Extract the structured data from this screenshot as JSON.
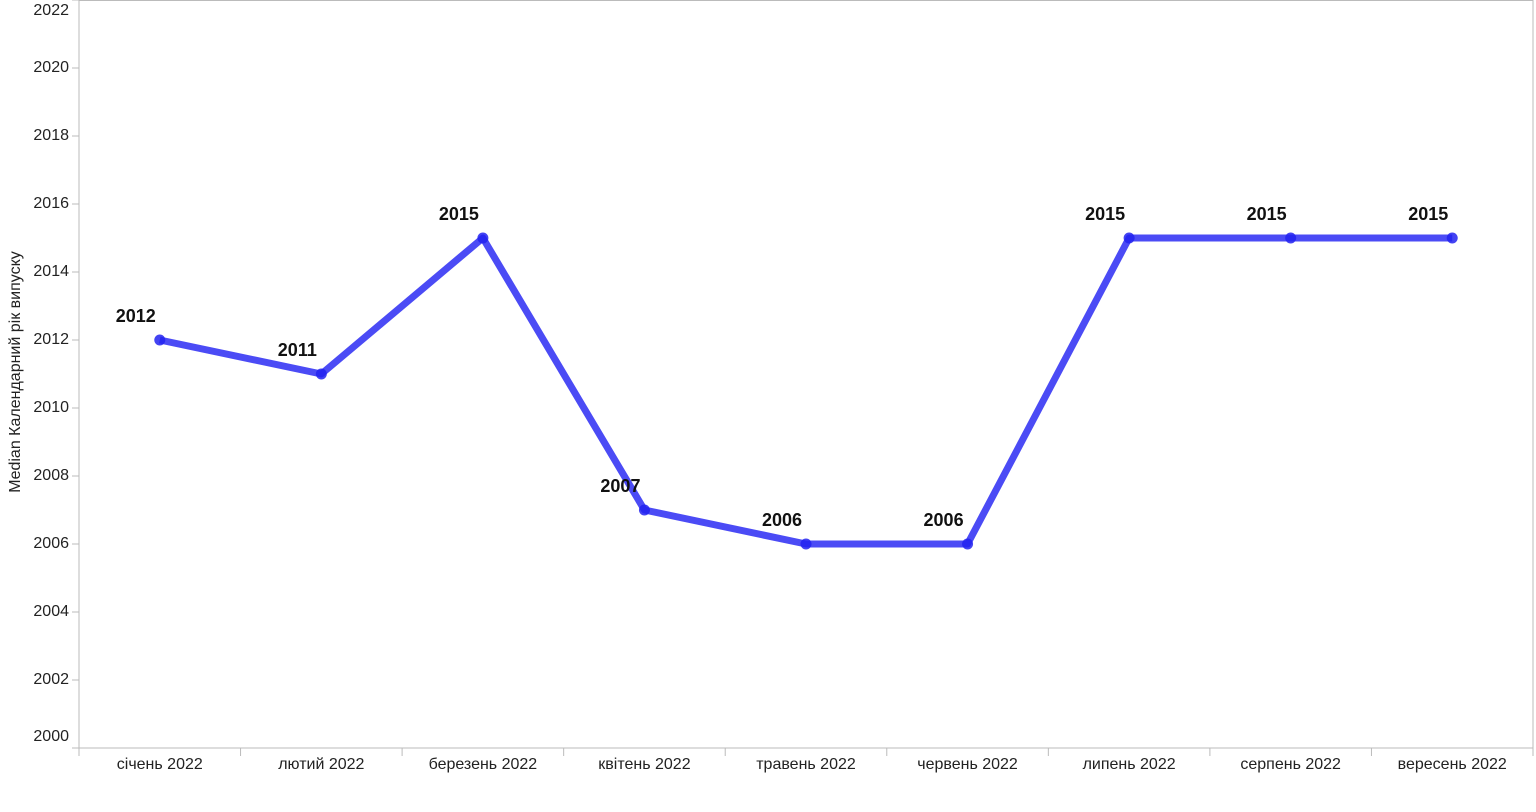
{
  "chart_data": {
    "type": "line",
    "y_label": "Median Календарний рік випуску",
    "categories": [
      "січень 2022",
      "лютий 2022",
      "березень 2022",
      "квітень 2022",
      "травень 2022",
      "червень 2022",
      "липень 2022",
      "серпень 2022",
      "вересень 2022"
    ],
    "series": [
      {
        "name": "Median Календарний рік випуску",
        "color": "#4b4bf5",
        "values": [
          2012,
          2011,
          2015,
          2007,
          2006,
          2006,
          2015,
          2015,
          2015
        ]
      }
    ],
    "ylim": [
      2000,
      2022
    ],
    "yticks": [
      2000,
      2002,
      2004,
      2006,
      2008,
      2010,
      2012,
      2014,
      2016,
      2018,
      2020,
      2022
    ],
    "data_labels": true
  }
}
